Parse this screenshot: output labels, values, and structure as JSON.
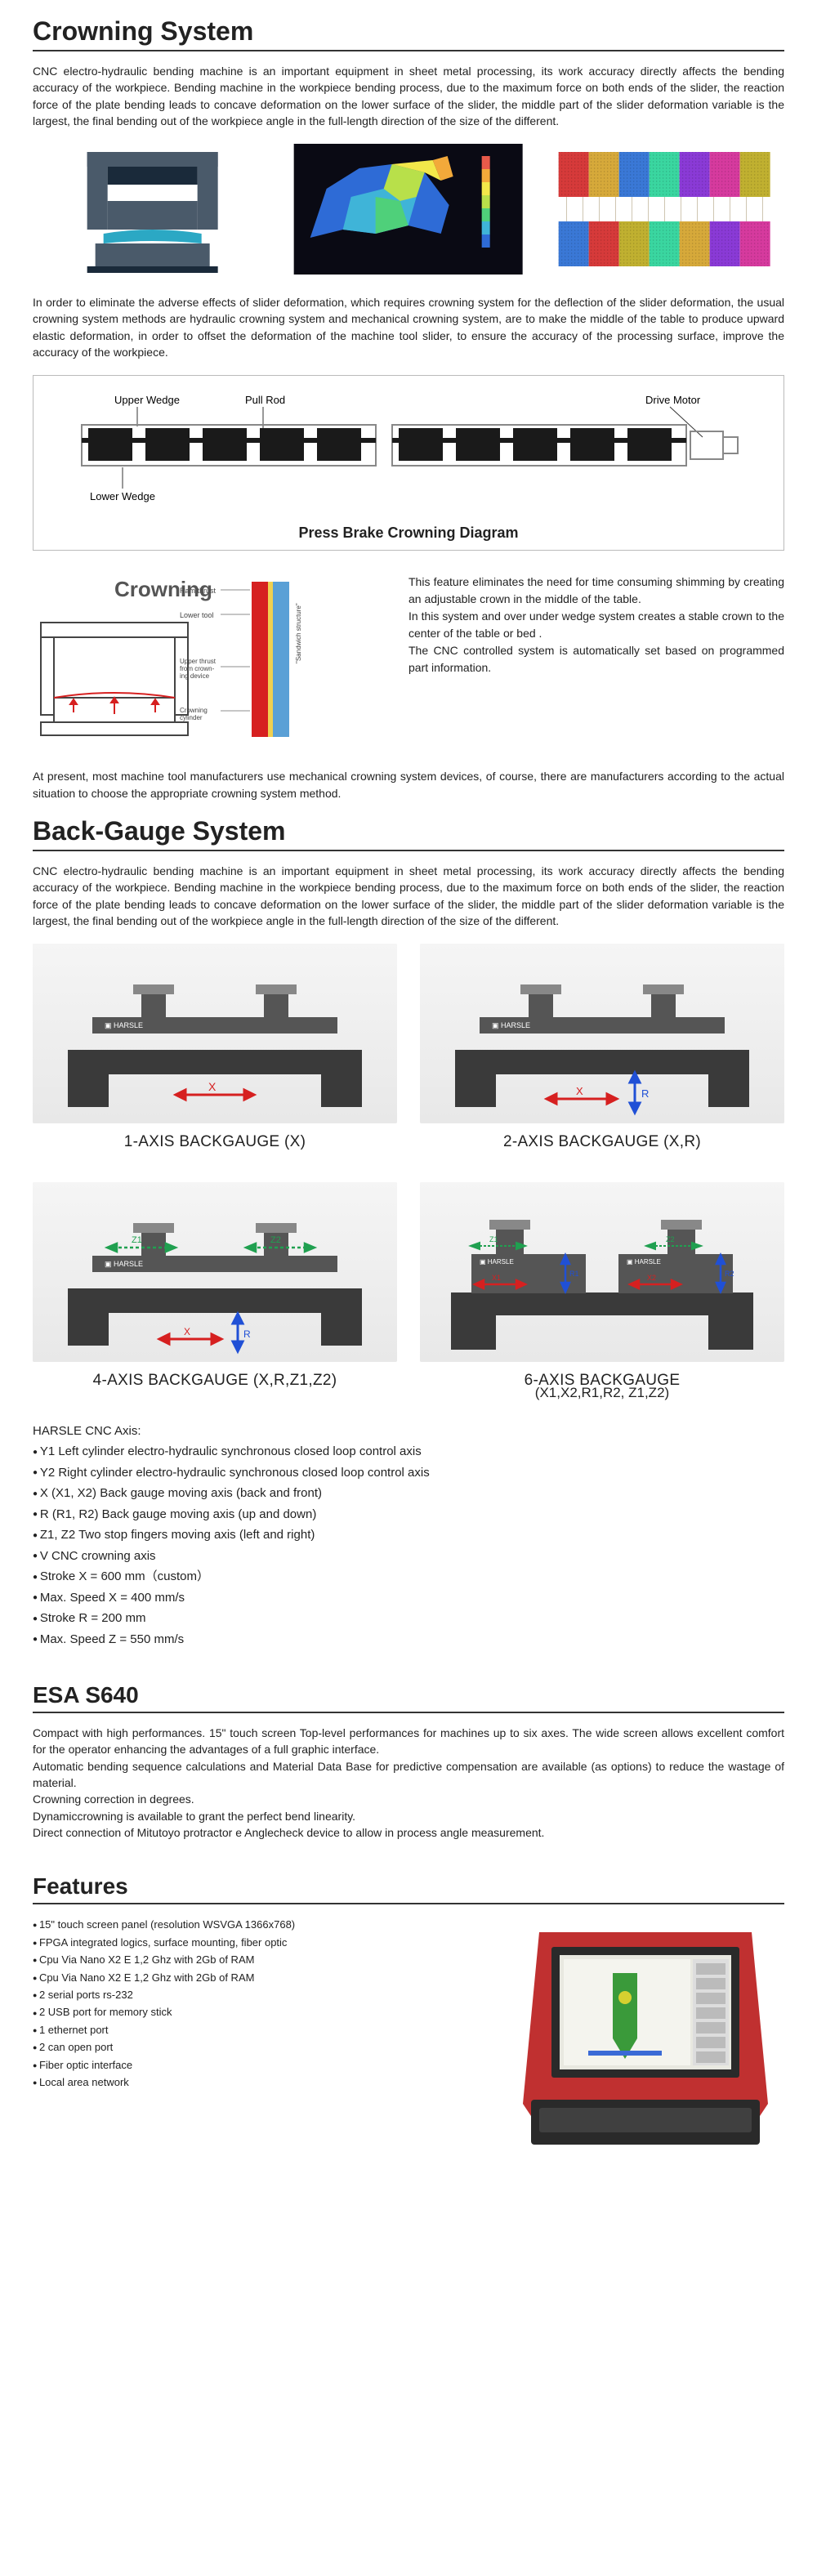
{
  "crowning": {
    "title": "Crowning System",
    "para1": "CNC electro-hydraulic bending machine is an important equipment in sheet metal processing, its work accuracy directly affects the bending accuracy of the workpiece. Bending machine in the workpiece bending process, due to the maximum force on both ends of the slider, the reaction force of the plate bending leads to concave deformation on the lower surface of the slider, the middle part of the slider deformation variable is the largest, the final bending out of the workpiece angle in the full-length direction of the size of the different.",
    "para2": "In order to eliminate the adverse effects of slider deformation, which requires crowning system for the deflection of the slider deformation, the usual crowning system methods are hydraulic crowning system and mechanical crowning system, are to make the middle of the table to produce upward elastic deformation, in order to offset the deformation of the machine tool slider, to ensure the accuracy of the processing surface, improve the accuracy of the workpiece.",
    "diag_labels": {
      "upper": "Upper Wedge",
      "pull": "Pull Rod",
      "drive": "Drive Motor",
      "lower": "Lower Wedge",
      "title": "Press Brake Crowning Diagram"
    },
    "crown_word": "Crowning",
    "mini_labels": {
      "a": "Ram thrust",
      "b": "Lower tool",
      "c": "Upper thrust from crowning device",
      "d": "Crowning cylinder",
      "e": "\"Sandwich structure\""
    },
    "feat_para": "This feature eliminates the need for time consuming shimming by creating an adjustable crown in the middle of the table.\nIn this system and over under wedge system creates a stable crown to the center of the table or bed .\nThe CNC controlled system is automatically set based on programmed part information.",
    "para3": "At present, most machine tool manufacturers use mechanical crowning system devices, of course, there are manufacturers according to the actual situation to choose the appropriate crowning system method."
  },
  "bg": {
    "title": "Back-Gauge System",
    "para1": "CNC electro-hydraulic bending machine is an important equipment in sheet metal processing, its work accuracy directly affects the bending accuracy of the workpiece. Bending machine in the workpiece bending process, due to the maximum force on both ends of the slider, the reaction force of the plate bending leads to concave deformation on the lower surface of the slider, the middle part of the slider deformation variable is the largest, the final bending out of the workpiece angle in the full-length direction of the size of the different.",
    "cap1": "1-AXIS BACKGAUGE (X)",
    "cap2": "2-AXIS BACKGAUGE (X,R)",
    "cap3": "4-AXIS BACKGAUGE (X,R,Z1,Z2)",
    "cap4_a": "6-AXIS BACKGAUGE",
    "cap4_b": "(X1,X2,R1,R2, Z1,Z2)",
    "axis_head": "HARSLE CNC Axis:",
    "axis": [
      "Y1 Left cylinder electro-hydraulic synchronous closed loop control axis",
      "Y2 Right cylinder electro-hydraulic synchronous closed loop control axis",
      "X (X1, X2) Back gauge moving axis (back and front)",
      "R (R1, R2) Back gauge moving axis (up and down)",
      "Z1, Z2 Two stop fingers moving axis (left and right)",
      "V CNC crowning axis",
      "Stroke X = 600 mm（custom）",
      "Max. Speed X = 400 mm/s",
      "Stroke R = 200 mm",
      "Max. Speed Z = 550 mm/s"
    ]
  },
  "esa": {
    "title": "ESA S640",
    "para": "Compact with high performances. 15\" touch screen Top-level performances for machines up to six axes. The wide screen allows excellent comfort for the operator enhancing the advantages of a full graphic interface.\nAutomatic bending sequence calculations and Material Data Base for predictive compensation are available (as options) to reduce the wastage of material.\nCrowning correction in degrees.\nDynamiccrowning is available to grant the perfect bend linearity.\nDirect connection of Mitutoyo protractor e Anglecheck device to allow in process angle measurement.",
    "feat_title": "Features",
    "feat": [
      "15\" touch screen panel (resolution WSVGA 1366x768)",
      "FPGA integrated logics, surface mounting, fiber optic",
      "Cpu Via Nano X2 E 1,2 Ghz with 2Gb of RAM",
      "Cpu Via Nano X2 E 1,2 Ghz with 2Gb of RAM",
      "2 serial ports rs-232",
      "2 USB port for memory stick",
      "1 ethernet port",
      "2 can open port",
      "Fiber optic interface",
      "Local area network"
    ]
  },
  "colors": {
    "sim_bg": "#0a0a14",
    "sim_palette": [
      "#2e6bd6",
      "#3fb4d8",
      "#4fd07a",
      "#b8e04a",
      "#f2e84a",
      "#f2a93a",
      "#e85a4a"
    ],
    "fabric_palette": [
      "#d63a3a",
      "#d6a93a",
      "#3a78d6",
      "#3ad6a0",
      "#8a3ad6",
      "#d63a9e",
      "#c0b030"
    ],
    "press_body": "#4a5a6a",
    "press_slot": "#1a2a3a",
    "press_bed": "#2ba8c4",
    "wedge_dark": "#1a1a1a",
    "wedge_border": "#888",
    "arrow_red": "#d62020",
    "arrow_blue": "#2050d6",
    "arrow_green": "#20a050",
    "gauge_dark": "#3a3a3a",
    "gauge_mid": "#555",
    "gauge_light": "#888",
    "console_red": "#c03030",
    "console_screen": "#e8e8e0",
    "console_frame": "#2a2a2a"
  }
}
